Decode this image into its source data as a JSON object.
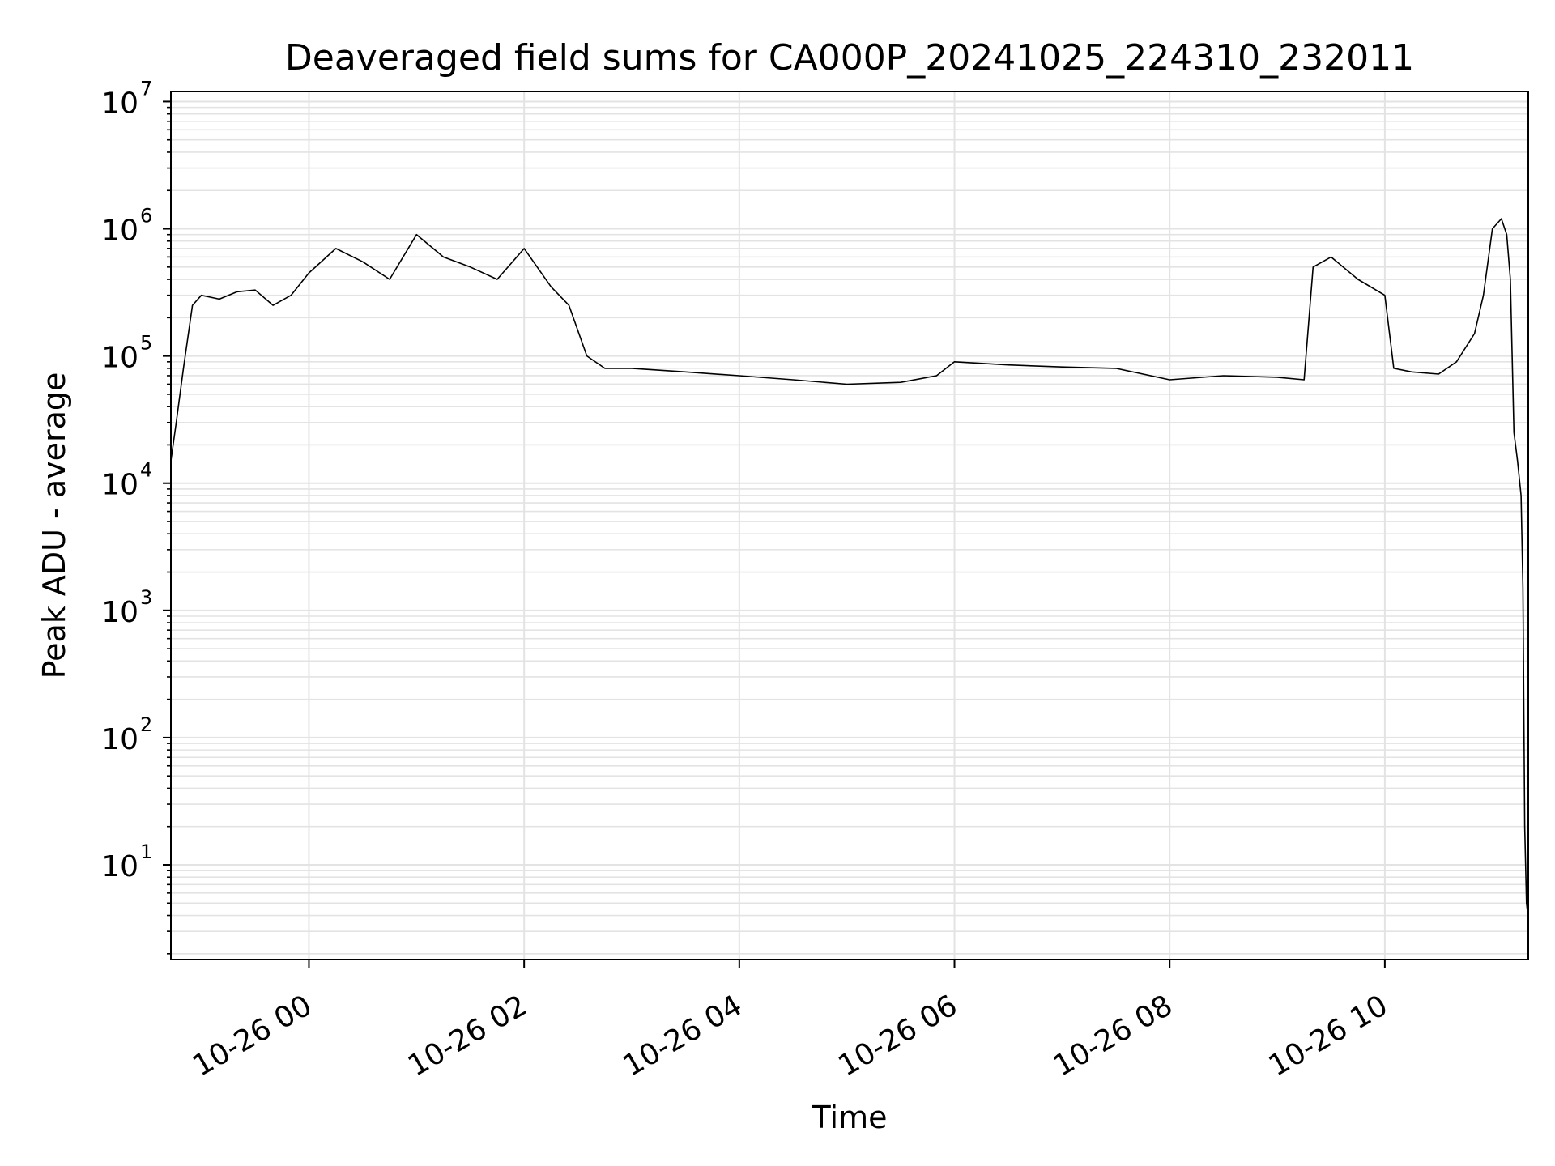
{
  "chart_data": {
    "type": "line",
    "title": "Deaveraged field sums for CA000P_20241025_224310_232011",
    "xlabel": "Time",
    "ylabel": "Peak ADU - average",
    "yscale": "log",
    "ylim": [
      1.8,
      12000000
    ],
    "xlim": [
      "2024-10-25 22:43",
      "2024-10-26 11:20"
    ],
    "grid": true,
    "line_color": "#000000",
    "grid_color": "#e3e3e3",
    "x_ticks": [
      {
        "label": "10-26 00",
        "time": "2024-10-26 00:00"
      },
      {
        "label": "10-26 02",
        "time": "2024-10-26 02:00"
      },
      {
        "label": "10-26 04",
        "time": "2024-10-26 04:00"
      },
      {
        "label": "10-26 06",
        "time": "2024-10-26 06:00"
      },
      {
        "label": "10-26 08",
        "time": "2024-10-26 08:00"
      },
      {
        "label": "10-26 10",
        "time": "2024-10-26 10:00"
      }
    ],
    "y_ticks": [
      {
        "base": "10",
        "exp": "1",
        "value": 10
      },
      {
        "base": "10",
        "exp": "2",
        "value": 100
      },
      {
        "base": "10",
        "exp": "3",
        "value": 1000
      },
      {
        "base": "10",
        "exp": "4",
        "value": 10000
      },
      {
        "base": "10",
        "exp": "5",
        "value": 100000
      },
      {
        "base": "10",
        "exp": "6",
        "value": 1000000
      },
      {
        "base": "10",
        "exp": "7",
        "value": 10000000
      }
    ],
    "series": [
      {
        "x": [
          "2024-10-25 22:43",
          "2024-10-25 22:46",
          "2024-10-25 22:50",
          "2024-10-25 22:55",
          "2024-10-25 23:00",
          "2024-10-25 23:10",
          "2024-10-25 23:20",
          "2024-10-25 23:30",
          "2024-10-25 23:40",
          "2024-10-25 23:50",
          "2024-10-26 00:00",
          "2024-10-26 00:15",
          "2024-10-26 00:30",
          "2024-10-26 00:45",
          "2024-10-26 01:00",
          "2024-10-26 01:15",
          "2024-10-26 01:30",
          "2024-10-26 01:45",
          "2024-10-26 02:00",
          "2024-10-26 02:15",
          "2024-10-26 02:25",
          "2024-10-26 02:35",
          "2024-10-26 02:45",
          "2024-10-26 03:00",
          "2024-10-26 03:30",
          "2024-10-26 04:00",
          "2024-10-26 04:30",
          "2024-10-26 05:00",
          "2024-10-26 05:30",
          "2024-10-26 05:50",
          "2024-10-26 06:00",
          "2024-10-26 06:30",
          "2024-10-26 07:00",
          "2024-10-26 07:30",
          "2024-10-26 08:00",
          "2024-10-26 08:30",
          "2024-10-26 09:00",
          "2024-10-26 09:15",
          "2024-10-26 09:20",
          "2024-10-26 09:30",
          "2024-10-26 09:45",
          "2024-10-26 10:00",
          "2024-10-26 10:05",
          "2024-10-26 10:15",
          "2024-10-26 10:30",
          "2024-10-26 10:40",
          "2024-10-26 10:50",
          "2024-10-26 10:55",
          "2024-10-26 11:00",
          "2024-10-26 11:05",
          "2024-10-26 11:08",
          "2024-10-26 11:10",
          "2024-10-26 11:12",
          "2024-10-26 11:14",
          "2024-10-26 11:16",
          "2024-10-26 11:17",
          "2024-10-26 11:18",
          "2024-10-26 11:19",
          "2024-10-26 11:20"
        ],
        "y": [
          15000,
          30000,
          80000,
          250000,
          300000,
          280000,
          320000,
          330000,
          250000,
          300000,
          450000,
          700000,
          550000,
          400000,
          900000,
          600000,
          500000,
          400000,
          700000,
          350000,
          250000,
          100000,
          80000,
          80000,
          75000,
          70000,
          65000,
          60000,
          62000,
          70000,
          90000,
          85000,
          82000,
          80000,
          65000,
          70000,
          68000,
          65000,
          500000,
          600000,
          400000,
          300000,
          80000,
          75000,
          72000,
          90000,
          150000,
          300000,
          1000000,
          1200000,
          900000,
          400000,
          25000,
          15000,
          8000,
          1500,
          20,
          5,
          3.8
        ]
      }
    ]
  }
}
